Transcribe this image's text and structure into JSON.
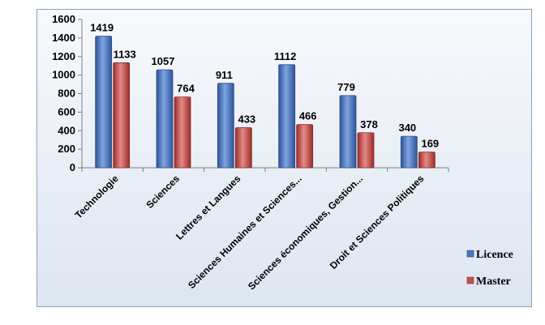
{
  "chart_data": {
    "type": "bar",
    "categories": [
      "Technologie",
      "Sciences",
      "Lettres et Langues",
      "Sciences Humaines et Sciences...",
      "Sciences économiques, Gestion...",
      "Droit et Sciences Politiques"
    ],
    "series": [
      {
        "name": "Licence",
        "values": [
          1419,
          1057,
          911,
          1112,
          779,
          340
        ],
        "color": "#4a76c4"
      },
      {
        "name": "Master",
        "values": [
          1133,
          764,
          433,
          466,
          378,
          169
        ],
        "color": "#c0504d"
      }
    ],
    "yticks": [
      "0",
      "200",
      "400",
      "600",
      "800",
      "1000",
      "1200",
      "1400",
      "1600"
    ],
    "ylim": [
      0,
      1600
    ],
    "grid": false,
    "legend_position": "right"
  }
}
